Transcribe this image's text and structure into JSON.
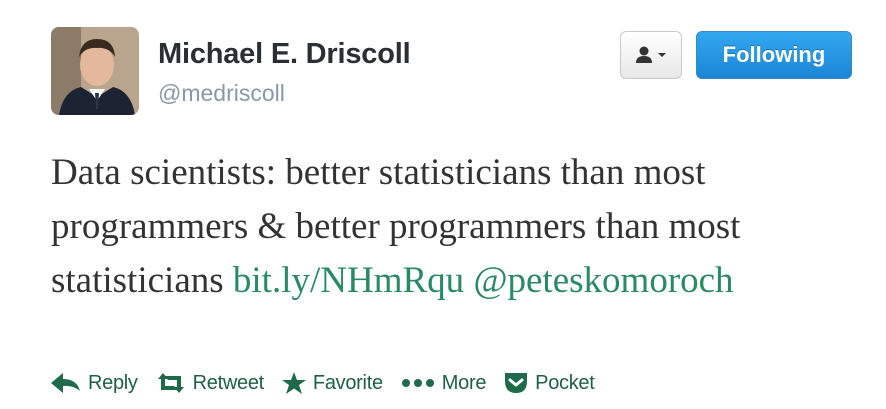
{
  "author": {
    "name": "Michael E. Driscoll",
    "handle": "@medriscoll"
  },
  "header_buttons": {
    "following_label": "Following"
  },
  "tweet": {
    "text_plain": "Data scientists: better statisticians than most programmers & better programmers than most statisticians",
    "link": "bit.ly/NHmRqu",
    "mention": "@peteskomoroch"
  },
  "actions": {
    "reply": "Reply",
    "retweet": "Retweet",
    "favorite": "Favorite",
    "more": "More",
    "pocket": "Pocket"
  },
  "colors": {
    "link": "#2a8a64",
    "action": "#1f5f45",
    "following_button": "#1b86d6"
  },
  "icons": {
    "follow_menu": "person-icon",
    "reply": "reply-icon",
    "retweet": "retweet-icon",
    "favorite": "star-icon",
    "more": "dots-icon",
    "pocket": "pocket-icon"
  }
}
